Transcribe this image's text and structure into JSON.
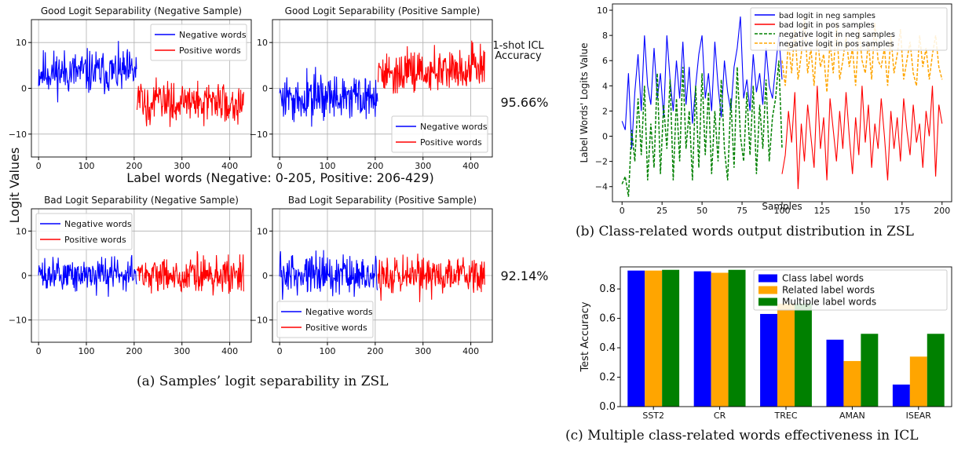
{
  "panel_a": {
    "caption": "(a)  Samples’ logit separability in ZSL",
    "ylabel": "Logit Values",
    "xlabel": "Label words (Negative: 0-205, Positive: 206-429)",
    "side_label": "1-shot ICL\nAccuracy",
    "accuracies": [
      "95.66%",
      "92.14%"
    ]
  },
  "panel_b": {
    "caption": "(b)  Class-related words output distribution in ZSL"
  },
  "panel_c": {
    "caption": "(c)  Multiple class-related words effectiveness in ICL"
  },
  "chart_data": [
    {
      "type": "line",
      "title": "Good Logit Separability (Negative Sample)",
      "xlim": [
        -15,
        445
      ],
      "ylim": [
        -15,
        15
      ],
      "xticks": [
        0,
        100,
        200,
        300,
        400
      ],
      "yticks": [
        -10,
        0,
        10
      ],
      "ytick_labels": [
        "−10",
        "0",
        "10"
      ],
      "grid": true,
      "legend_position": "upper-right",
      "series": [
        {
          "name": "Negative words",
          "color": "#0000ff",
          "x_range": [
            0,
            205
          ],
          "mean": 3.5,
          "amplitude": 3.2
        },
        {
          "name": "Positive words",
          "color": "#ff0000",
          "x_range": [
            206,
            429
          ],
          "mean": -3.0,
          "amplitude": 3.0
        }
      ]
    },
    {
      "type": "line",
      "title": "Good Logit Separability (Positive Sample)",
      "xlim": [
        -15,
        445
      ],
      "ylim": [
        -15,
        15
      ],
      "xticks": [
        0,
        100,
        200,
        300,
        400
      ],
      "yticks": [
        -10,
        0,
        10
      ],
      "ytick_labels": [
        "−10",
        "0",
        "10"
      ],
      "grid": true,
      "legend_position": "lower-right",
      "series": [
        {
          "name": "Negative words",
          "color": "#0000ff",
          "x_range": [
            0,
            205
          ],
          "mean": -2.0,
          "amplitude": 3.2
        },
        {
          "name": "Positive words",
          "color": "#ff0000",
          "x_range": [
            206,
            429
          ],
          "mean": 4.0,
          "amplitude": 3.2
        }
      ]
    },
    {
      "type": "line",
      "title": "Bad Logit Separability (Negative Sample)",
      "xlim": [
        -15,
        445
      ],
      "ylim": [
        -15,
        15
      ],
      "xticks": [
        0,
        100,
        200,
        300,
        400
      ],
      "yticks": [
        -10,
        0,
        10
      ],
      "ytick_labels": [
        "−10",
        "0",
        "10"
      ],
      "grid": true,
      "legend_position": "upper-left",
      "series": [
        {
          "name": "Negative words",
          "color": "#0000ff",
          "x_range": [
            0,
            205
          ],
          "mean": 0.0,
          "amplitude": 2.6
        },
        {
          "name": "Positive words",
          "color": "#ff0000",
          "x_range": [
            206,
            429
          ],
          "mean": 0.0,
          "amplitude": 2.9
        }
      ]
    },
    {
      "type": "line",
      "title": "Bad Logit Separability (Positive Sample)",
      "xlim": [
        -15,
        445
      ],
      "ylim": [
        -15,
        15
      ],
      "xticks": [
        0,
        100,
        200,
        300,
        400
      ],
      "yticks": [
        -10,
        0,
        10
      ],
      "ytick_labels": [
        "−10",
        "0",
        "10"
      ],
      "grid": true,
      "legend_position": "lower-left",
      "series": [
        {
          "name": "Negative words",
          "color": "#0000ff",
          "x_range": [
            0,
            205
          ],
          "mean": 0.5,
          "amplitude": 3.0
        },
        {
          "name": "Positive words",
          "color": "#ff0000",
          "x_range": [
            206,
            429
          ],
          "mean": 0.0,
          "amplitude": 2.9
        }
      ]
    },
    {
      "type": "line",
      "title": "",
      "xlabel": "Samples",
      "ylabel": "Label Words' Logits Value",
      "xlim": [
        -6,
        206
      ],
      "ylim": [
        -5.2,
        10.5
      ],
      "xticks": [
        0,
        25,
        50,
        75,
        100,
        125,
        150,
        175,
        200
      ],
      "yticks": [
        -4,
        -2,
        0,
        2,
        4,
        6,
        8,
        10
      ],
      "ytick_labels": [
        "−4",
        "−2",
        "0",
        "2",
        "4",
        "6",
        "8",
        "10"
      ],
      "grid": false,
      "legend_position": "upper-right",
      "series": [
        {
          "name": "bad logit in neg samples",
          "color": "#0000ff",
          "style": "solid",
          "x": [
            0,
            2,
            4,
            6,
            8,
            10,
            12,
            14,
            16,
            18,
            20,
            22,
            24,
            26,
            28,
            30,
            32,
            34,
            36,
            38,
            40,
            42,
            44,
            46,
            48,
            50,
            52,
            54,
            56,
            58,
            60,
            62,
            64,
            66,
            68,
            70,
            72,
            74,
            76,
            78,
            80,
            82,
            84,
            86,
            88,
            90,
            92,
            94,
            96,
            98,
            100
          ],
          "y": [
            1.2,
            0.5,
            5.0,
            -1.0,
            3.5,
            6.5,
            2.0,
            8.0,
            4.0,
            2.5,
            7.0,
            3.0,
            5.0,
            1.5,
            8.0,
            4.5,
            2.0,
            6.0,
            3.0,
            7.5,
            2.5,
            5.5,
            1.0,
            4.0,
            6.5,
            8.0,
            3.0,
            5.0,
            2.0,
            7.5,
            4.0,
            1.5,
            6.0,
            3.5,
            2.0,
            5.5,
            7.0,
            9.5,
            3.0,
            4.5,
            2.0,
            6.5,
            3.5,
            5.0,
            2.5,
            7.0,
            4.0,
            3.0,
            5.5,
            8.0,
            4.5
          ]
        },
        {
          "name": "bad logit in pos samples",
          "color": "#ff0000",
          "style": "solid",
          "x": [
            100,
            102,
            104,
            106,
            108,
            110,
            112,
            114,
            116,
            118,
            120,
            122,
            124,
            126,
            128,
            130,
            132,
            134,
            136,
            138,
            140,
            142,
            144,
            146,
            148,
            150,
            152,
            154,
            156,
            158,
            160,
            162,
            164,
            166,
            168,
            170,
            172,
            174,
            176,
            178,
            180,
            182,
            184,
            186,
            188,
            190,
            192,
            194,
            196,
            198,
            200
          ],
          "y": [
            -3.0,
            -1.5,
            2.0,
            -0.5,
            3.5,
            -4.2,
            1.0,
            -2.0,
            2.5,
            0.0,
            -2.5,
            4.0,
            -1.0,
            1.5,
            -3.5,
            3.0,
            0.5,
            -2.0,
            2.0,
            -1.0,
            3.5,
            0.0,
            -3.0,
            1.5,
            -1.5,
            4.0,
            -0.5,
            2.5,
            -2.5,
            1.0,
            -1.0,
            3.0,
            0.0,
            -3.5,
            2.0,
            -1.0,
            1.5,
            -2.0,
            3.0,
            0.5,
            -1.5,
            2.5,
            -0.5,
            1.0,
            -2.5,
            2.0,
            0.0,
            4.0,
            -3.2,
            2.5,
            1.0
          ]
        },
        {
          "name": "negative logit in neg samples",
          "color": "#008000",
          "style": "dashed",
          "x": [
            0,
            2,
            4,
            6,
            8,
            10,
            12,
            14,
            16,
            18,
            20,
            22,
            24,
            26,
            28,
            30,
            32,
            34,
            36,
            38,
            40,
            42,
            44,
            46,
            48,
            50,
            52,
            54,
            56,
            58,
            60,
            62,
            64,
            66,
            68,
            70,
            72,
            74,
            76,
            78,
            80,
            82,
            84,
            86,
            88,
            90,
            92,
            94,
            96,
            98,
            100
          ],
          "y": [
            -3.8,
            -3.2,
            -4.8,
            0.5,
            -2.0,
            3.0,
            -1.5,
            4.0,
            -3.5,
            1.0,
            -2.5,
            5.0,
            -3.0,
            2.5,
            -1.0,
            4.5,
            -3.5,
            3.0,
            -2.0,
            5.5,
            -1.0,
            2.0,
            -3.5,
            4.0,
            -2.5,
            5.0,
            -1.5,
            3.5,
            -3.0,
            2.0,
            -2.0,
            4.5,
            -1.0,
            -3.5,
            3.0,
            -2.5,
            5.5,
            0.0,
            -2.0,
            3.5,
            -1.5,
            4.0,
            -3.0,
            2.5,
            -1.0,
            4.5,
            -2.0,
            1.5,
            3.0,
            6.0,
            -1.0
          ]
        },
        {
          "name": "negative logit in pos samples",
          "color": "#ffa500",
          "style": "dashed",
          "x": [
            100,
            102,
            104,
            106,
            108,
            110,
            112,
            114,
            116,
            118,
            120,
            122,
            124,
            126,
            128,
            130,
            132,
            134,
            136,
            138,
            140,
            142,
            144,
            146,
            148,
            150,
            152,
            154,
            156,
            158,
            160,
            162,
            164,
            166,
            168,
            170,
            172,
            174,
            176,
            178,
            180,
            182,
            184,
            186,
            188,
            190,
            192,
            194,
            196,
            198,
            200
          ],
          "y": [
            6.0,
            4.0,
            7.5,
            5.0,
            8.5,
            4.5,
            6.5,
            9.5,
            5.0,
            7.0,
            4.0,
            8.0,
            5.5,
            6.5,
            3.5,
            7.5,
            5.0,
            9.0,
            4.5,
            6.0,
            8.0,
            5.5,
            7.0,
            4.0,
            8.5,
            6.0,
            5.0,
            7.5,
            4.5,
            9.0,
            6.0,
            5.5,
            7.0,
            4.0,
            8.0,
            5.0,
            6.5,
            8.5,
            4.5,
            6.0,
            7.5,
            5.0,
            4.0,
            8.0,
            5.5,
            7.0,
            4.5,
            6.5,
            8.0,
            5.5,
            4.5
          ]
        }
      ]
    },
    {
      "type": "bar",
      "title": "",
      "ylabel": "Test Accuracy",
      "categories": [
        "SST2",
        "CR",
        "TREC",
        "AMAN",
        "ISEAR"
      ],
      "ylim": [
        0,
        0.95
      ],
      "yticks": [
        0.0,
        0.2,
        0.4,
        0.6,
        0.8
      ],
      "ytick_labels": [
        "0.0",
        "0.2",
        "0.4",
        "0.6",
        "0.8"
      ],
      "grid": false,
      "legend_position": "upper-right",
      "series": [
        {
          "name": "Class label words",
          "color": "#0000ff",
          "values": [
            0.925,
            0.92,
            0.63,
            0.455,
            0.15
          ]
        },
        {
          "name": "Related label words",
          "color": "#ffa500",
          "values": [
            0.925,
            0.91,
            0.7,
            0.31,
            0.34
          ]
        },
        {
          "name": "Multiple label words",
          "color": "#008000",
          "values": [
            0.93,
            0.93,
            0.7,
            0.495,
            0.495
          ]
        }
      ]
    }
  ]
}
